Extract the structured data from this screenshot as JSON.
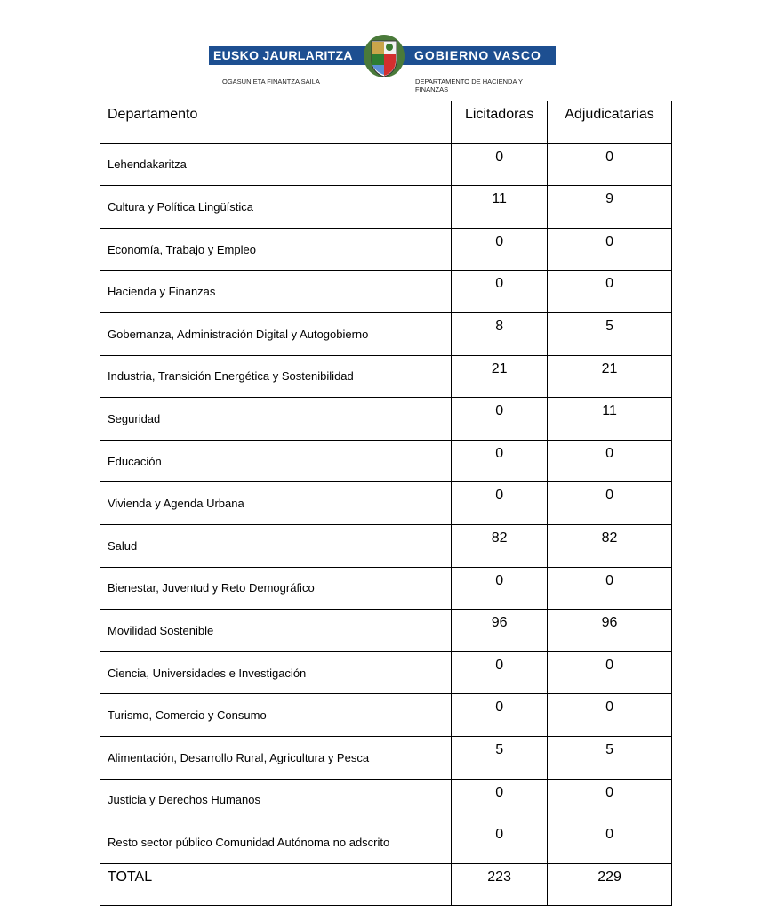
{
  "header": {
    "left_title": "EUSKO JAURLARITZA",
    "right_title": "GOBIERNO VASCO",
    "left_sub": "OGASUN ETA FINANTZA SAILA",
    "right_sub_1": "DEPARTAMENTO DE HACIENDA Y",
    "right_sub_2": "FINANZAS",
    "brand_color": "#1d4f91"
  },
  "table": {
    "headers": [
      "Departamento",
      "Licitadoras",
      "Adjudicatarias"
    ],
    "rows": [
      [
        "Lehendakaritza",
        "0",
        "0"
      ],
      [
        "Cultura y Política Lingüística",
        "11",
        "9"
      ],
      [
        "Economía, Trabajo y Empleo",
        "0",
        "0"
      ],
      [
        "Hacienda y Finanzas",
        "0",
        "0"
      ],
      [
        "Gobernanza, Administración Digital y Autogobierno",
        "8",
        "5"
      ],
      [
        "Industria, Transición Energética y Sostenibilidad",
        "21",
        "21"
      ],
      [
        "Seguridad",
        "0",
        "11"
      ],
      [
        "Educación",
        "0",
        "0"
      ],
      [
        "Vivienda y Agenda Urbana",
        "0",
        "0"
      ],
      [
        "Salud",
        "82",
        "82"
      ],
      [
        "Bienestar, Juventud y Reto Demográfico",
        "0",
        "0"
      ],
      [
        "Movilidad Sostenible",
        "96",
        "96"
      ],
      [
        "Ciencia, Universidades e Investigación",
        "0",
        "0"
      ],
      [
        "Turismo, Comercio y Consumo",
        "0",
        "0"
      ],
      [
        "Alimentación, Desarrollo Rural, Agricultura y Pesca",
        "5",
        "5"
      ],
      [
        "Justicia y Derechos Humanos",
        "0",
        "0"
      ],
      [
        "Resto sector público Comunidad Autónoma no adscrito",
        "0",
        "0"
      ]
    ],
    "total": [
      "TOTAL",
      "223",
      "229"
    ]
  }
}
